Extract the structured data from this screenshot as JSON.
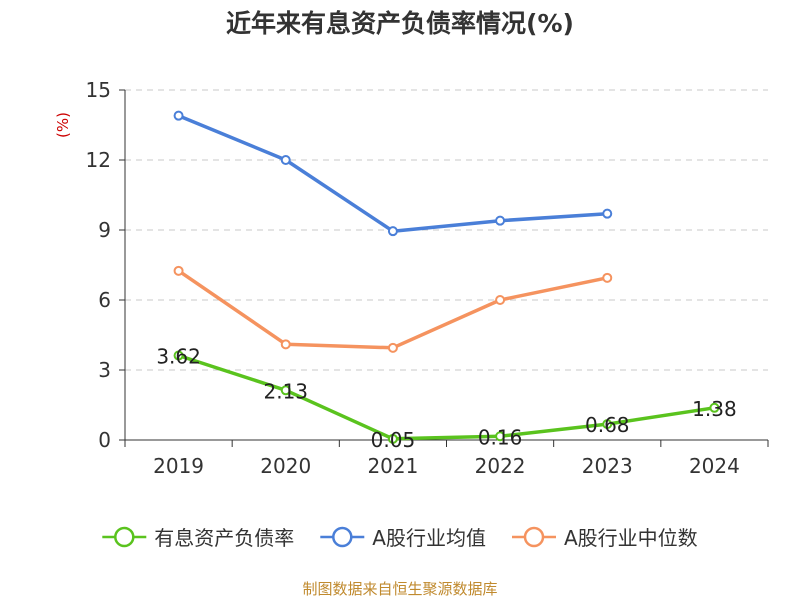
{
  "title": "近年来有息资产负债率情况(%)",
  "source": "制图数据来自恒生聚源数据库",
  "colors": {
    "series_main": "#5ac31e",
    "series_avg": "#4a7fd8",
    "series_median": "#f5935f",
    "unit_label": "#cc0000",
    "source_text": "#c08a2e"
  },
  "chart_data": {
    "type": "line",
    "title": "近年来有息资产负债率情况(%)",
    "ylabel": "(%)",
    "ylim": [
      0,
      15
    ],
    "yticks": [
      0,
      3,
      6,
      9,
      12,
      15
    ],
    "grid": true,
    "legend_position": "bottom",
    "categories": [
      "2019",
      "2020",
      "2021",
      "2022",
      "2023",
      "2024"
    ],
    "series": [
      {
        "name": "有息资产负债率",
        "values": [
          3.62,
          2.13,
          0.05,
          0.16,
          0.68,
          1.38
        ],
        "labels": [
          "3.62",
          "2.13",
          "0.05",
          "0.16",
          "0.68",
          "1.38"
        ],
        "color": "#5ac31e"
      },
      {
        "name": "A股行业均值",
        "values": [
          13.9,
          12.0,
          8.95,
          9.4,
          9.7,
          null
        ],
        "color": "#4a7fd8"
      },
      {
        "name": "A股行业中位数",
        "values": [
          7.25,
          4.1,
          3.95,
          6.0,
          6.95,
          null
        ],
        "color": "#f5935f"
      }
    ]
  }
}
